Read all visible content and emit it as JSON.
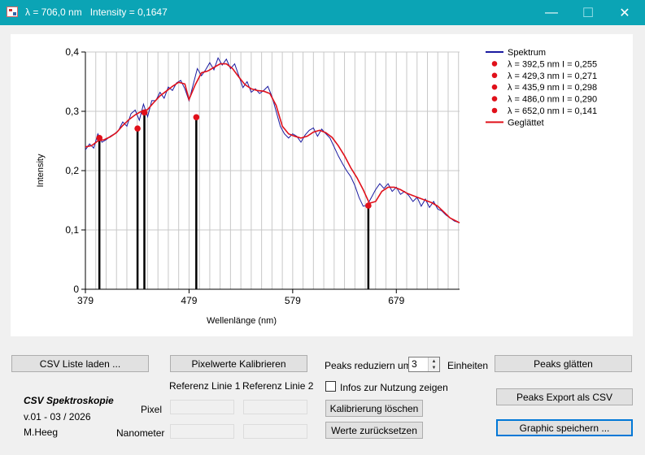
{
  "window": {
    "title": "λ = 706,0 nm   Intensity = 0,1647",
    "minimize_glyph": "—",
    "maximize_glyph": "☐",
    "close_glyph": "✕"
  },
  "chart_data": {
    "type": "line",
    "xlabel": "Wellenlänge (nm)",
    "ylabel": "Intensity",
    "xlim": [
      379,
      740
    ],
    "ylim": [
      0,
      0.4
    ],
    "x_ticks": [
      379,
      479,
      579,
      679
    ],
    "x_tick_labels": [
      "379",
      "479",
      "579",
      "679"
    ],
    "y_ticks": [
      0,
      0.1,
      0.2,
      0.3,
      0.4
    ],
    "y_tick_labels": [
      "0",
      "0,1",
      "0,2",
      "0,3",
      "0,4"
    ],
    "grid": true,
    "legend_position": "top-right",
    "series": [
      {
        "name": "Spektrum",
        "color": "#1a1aa0",
        "x": [
          379,
          383,
          387,
          391,
          395,
          399,
          403,
          407,
          411,
          415,
          419,
          423,
          427,
          431,
          435,
          439,
          443,
          447,
          451,
          455,
          459,
          463,
          467,
          471,
          475,
          479,
          483,
          487,
          491,
          495,
          499,
          503,
          507,
          511,
          515,
          519,
          523,
          527,
          531,
          535,
          539,
          543,
          547,
          551,
          555,
          559,
          563,
          567,
          571,
          575,
          579,
          583,
          587,
          591,
          595,
          599,
          603,
          607,
          611,
          615,
          619,
          623,
          627,
          631,
          635,
          639,
          643,
          647,
          651,
          655,
          659,
          663,
          667,
          671,
          675,
          679,
          683,
          687,
          691,
          695,
          699,
          703,
          707,
          711,
          715,
          719,
          723,
          727,
          731,
          735,
          740
        ],
        "y": [
          0.235,
          0.245,
          0.238,
          0.262,
          0.248,
          0.252,
          0.258,
          0.262,
          0.268,
          0.282,
          0.275,
          0.296,
          0.302,
          0.285,
          0.312,
          0.291,
          0.318,
          0.318,
          0.332,
          0.322,
          0.341,
          0.335,
          0.348,
          0.352,
          0.338,
          0.318,
          0.345,
          0.372,
          0.36,
          0.37,
          0.382,
          0.37,
          0.39,
          0.378,
          0.388,
          0.372,
          0.38,
          0.36,
          0.34,
          0.35,
          0.332,
          0.338,
          0.33,
          0.335,
          0.342,
          0.325,
          0.3,
          0.275,
          0.262,
          0.255,
          0.262,
          0.258,
          0.248,
          0.26,
          0.268,
          0.272,
          0.258,
          0.27,
          0.262,
          0.255,
          0.24,
          0.225,
          0.212,
          0.2,
          0.19,
          0.175,
          0.155,
          0.14,
          0.142,
          0.155,
          0.168,
          0.178,
          0.17,
          0.178,
          0.165,
          0.172,
          0.16,
          0.165,
          0.158,
          0.148,
          0.155,
          0.14,
          0.152,
          0.138,
          0.148,
          0.135,
          0.132,
          0.125,
          0.12,
          0.115,
          0.112
        ]
      },
      {
        "name": "Geglättet",
        "color": "#e0101a",
        "x": [
          379,
          385,
          391,
          397,
          403,
          409,
          415,
          421,
          427,
          433,
          439,
          445,
          451,
          457,
          463,
          469,
          475,
          479,
          485,
          491,
          497,
          503,
          509,
          515,
          521,
          527,
          533,
          539,
          545,
          551,
          557,
          563,
          569,
          575,
          581,
          587,
          593,
          599,
          605,
          611,
          617,
          623,
          629,
          635,
          641,
          647,
          653,
          659,
          665,
          671,
          677,
          683,
          689,
          695,
          701,
          707,
          713,
          719,
          725,
          731,
          740
        ],
        "y": [
          0.24,
          0.242,
          0.25,
          0.252,
          0.257,
          0.264,
          0.276,
          0.286,
          0.294,
          0.3,
          0.303,
          0.315,
          0.326,
          0.334,
          0.342,
          0.349,
          0.346,
          0.32,
          0.345,
          0.365,
          0.368,
          0.374,
          0.38,
          0.38,
          0.372,
          0.358,
          0.345,
          0.338,
          0.335,
          0.334,
          0.33,
          0.31,
          0.275,
          0.262,
          0.258,
          0.255,
          0.258,
          0.265,
          0.268,
          0.264,
          0.256,
          0.242,
          0.225,
          0.205,
          0.188,
          0.168,
          0.145,
          0.148,
          0.165,
          0.172,
          0.172,
          0.168,
          0.162,
          0.158,
          0.154,
          0.15,
          0.146,
          0.14,
          0.13,
          0.12,
          0.112
        ]
      }
    ],
    "peaks": [
      {
        "label": "λ = 392,5 nm   I = 0,255",
        "x": 392.5,
        "y": 0.255,
        "color": "#e0101a"
      },
      {
        "label": "λ = 429,3 nm   I = 0,271",
        "x": 429.3,
        "y": 0.271,
        "color": "#e0101a"
      },
      {
        "label": "λ = 435,9 nm   I = 0,298",
        "x": 435.9,
        "y": 0.298,
        "color": "#e0101a"
      },
      {
        "label": "λ = 486,0 nm   I = 0,290",
        "x": 486.0,
        "y": 0.29,
        "color": "#e0101a"
      },
      {
        "label": "λ = 652,0 nm   I = 0,141",
        "x": 652.0,
        "y": 0.141,
        "color": "#e0101a"
      }
    ]
  },
  "controls": {
    "load_csv": "CSV Liste laden ...",
    "calibrate_pixels": "Pixelwerte Kalibrieren",
    "peaks_reduce_label": "Peaks reduziern um",
    "peaks_reduce_value": "3",
    "units_label": "Einheiten",
    "smooth_peaks": "Peaks glätten",
    "show_info": "Infos zur Nutzung zeigen",
    "export_csv": "Peaks Export als CSV",
    "ref_line_1": "Referenz Linie 1",
    "ref_line_2": "Referenz Linie 2",
    "pixel_label": "Pixel",
    "nanometer_label": "Nanometer",
    "clear_calibration": "Kalibrierung löschen",
    "reset_values": "Werte zurücksetzen",
    "save_graphic": "Graphic speichern ..."
  },
  "app_info": {
    "name": "CSV Spektroskopie",
    "version": "v.01 - 03 / 2026",
    "author": "M.Heeg"
  }
}
